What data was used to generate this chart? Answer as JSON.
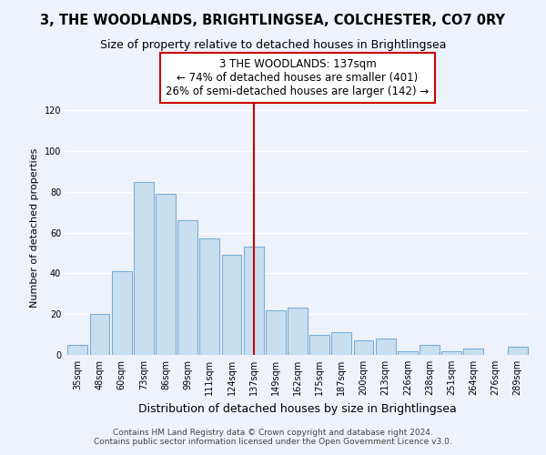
{
  "title": "3, THE WOODLANDS, BRIGHTLINGSEA, COLCHESTER, CO7 0RY",
  "subtitle": "Size of property relative to detached houses in Brightlingsea",
  "xlabel": "Distribution of detached houses by size in Brightlingsea",
  "ylabel": "Number of detached properties",
  "bar_labels": [
    "35sqm",
    "48sqm",
    "60sqm",
    "73sqm",
    "86sqm",
    "99sqm",
    "111sqm",
    "124sqm",
    "137sqm",
    "149sqm",
    "162sqm",
    "175sqm",
    "187sqm",
    "200sqm",
    "213sqm",
    "226sqm",
    "238sqm",
    "251sqm",
    "264sqm",
    "276sqm",
    "289sqm"
  ],
  "bar_values": [
    5,
    20,
    41,
    85,
    79,
    66,
    57,
    49,
    53,
    22,
    23,
    10,
    11,
    7,
    8,
    2,
    5,
    2,
    3,
    0,
    4
  ],
  "bar_color": "#c8dff0",
  "bar_edge_color": "#7aaed6",
  "highlight_index": 8,
  "highlight_line_color": "#cc0000",
  "annotation_text": "3 THE WOODLANDS: 137sqm\n← 74% of detached houses are smaller (401)\n26% of semi-detached houses are larger (142) →",
  "annotation_box_color": "#ffffff",
  "annotation_box_edge_color": "#cc0000",
  "ylim": [
    0,
    125
  ],
  "yticks": [
    0,
    20,
    40,
    60,
    80,
    100,
    120
  ],
  "footer_line1": "Contains HM Land Registry data © Crown copyright and database right 2024.",
  "footer_line2": "Contains public sector information licensed under the Open Government Licence v3.0.",
  "background_color": "#eef2fb",
  "grid_color": "#ffffff",
  "title_fontsize": 10.5,
  "subtitle_fontsize": 9,
  "xlabel_fontsize": 9,
  "ylabel_fontsize": 8,
  "tick_fontsize": 7,
  "annotation_fontsize": 8.5,
  "footer_fontsize": 6.5
}
